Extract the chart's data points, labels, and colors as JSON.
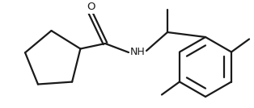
{
  "bg_color": "#ffffff",
  "line_color": "#1a1a1a",
  "line_width": 1.6,
  "figsize": [
    3.14,
    1.34
  ],
  "dpi": 100,
  "xlim": [
    0,
    314
  ],
  "ylim": [
    0,
    134
  ]
}
